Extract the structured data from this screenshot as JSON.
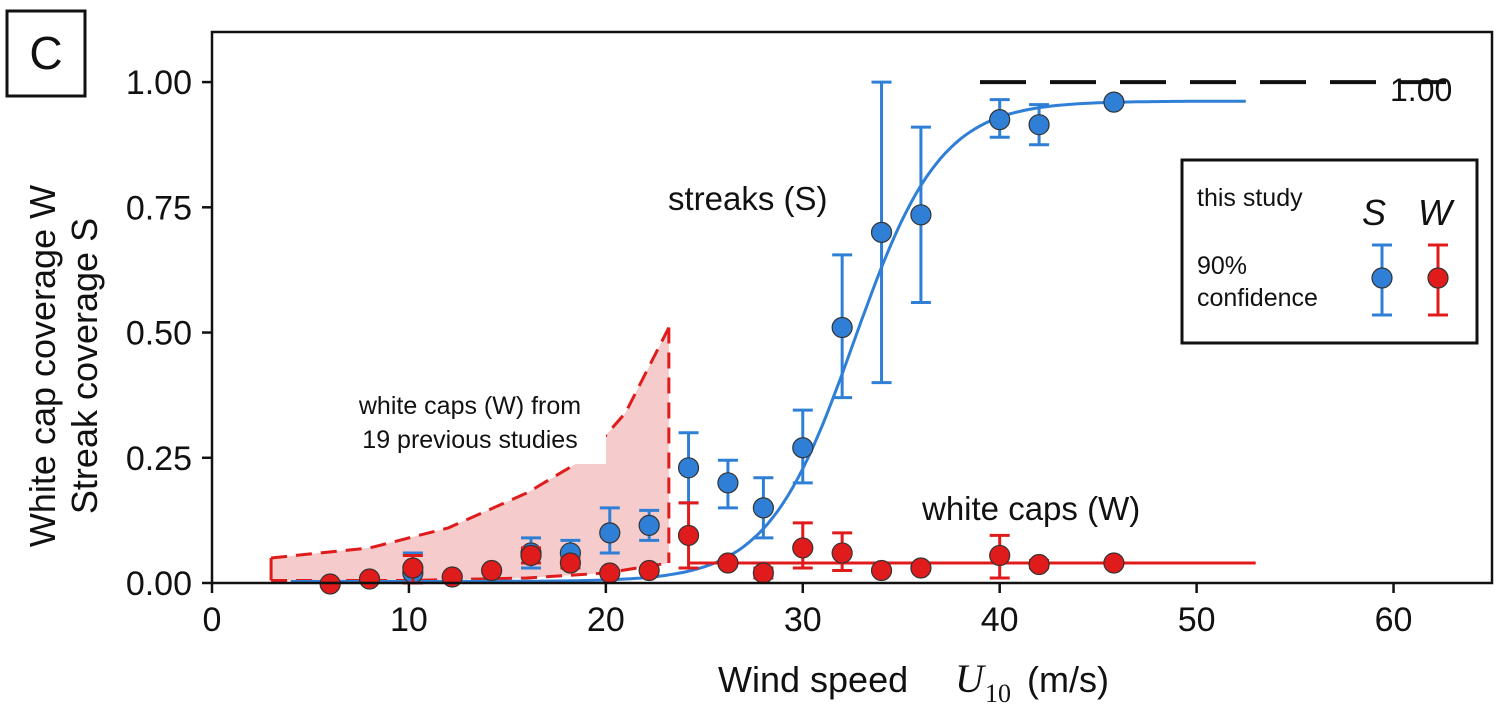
{
  "panel_label": "C",
  "chart_data": {
    "type": "scatter",
    "xlabel": {
      "prefix": "Wind speed",
      "symbol": "U",
      "subscript": "10",
      "unit": "(m/s)"
    },
    "ylabel_lines": [
      "White cap coverage W",
      "Streak coverage S"
    ],
    "xlim": [
      0,
      65
    ],
    "ylim": [
      0,
      1.1
    ],
    "x_ticks": [
      0,
      10,
      20,
      30,
      40,
      50,
      60
    ],
    "x_tick_labels": [
      "0",
      "10",
      "20",
      "30",
      "40",
      "50",
      "60"
    ],
    "y_ticks": [
      0,
      0.25,
      0.5,
      0.75,
      1.0
    ],
    "y_tick_labels": [
      "0.00",
      "0.25",
      "0.50",
      "0.75",
      "1.00"
    ],
    "grid": false,
    "series": [
      {
        "name": "S",
        "color": "#2f7fd6",
        "points": [
          {
            "x": 10.2,
            "y": 0.02,
            "lo": 0.0,
            "hi": 0.06
          },
          {
            "x": 16.2,
            "y": 0.06,
            "lo": 0.03,
            "hi": 0.09
          },
          {
            "x": 18.2,
            "y": 0.06,
            "lo": 0.04,
            "hi": 0.085
          },
          {
            "x": 20.2,
            "y": 0.1,
            "lo": 0.06,
            "hi": 0.15
          },
          {
            "x": 22.2,
            "y": 0.115,
            "lo": 0.085,
            "hi": 0.145
          },
          {
            "x": 24.2,
            "y": 0.23,
            "lo": 0.16,
            "hi": 0.3
          },
          {
            "x": 26.2,
            "y": 0.2,
            "lo": 0.15,
            "hi": 0.245
          },
          {
            "x": 28.0,
            "y": 0.15,
            "lo": 0.09,
            "hi": 0.21
          },
          {
            "x": 30.0,
            "y": 0.27,
            "lo": 0.2,
            "hi": 0.345
          },
          {
            "x": 32.0,
            "y": 0.51,
            "lo": 0.37,
            "hi": 0.655
          },
          {
            "x": 34.0,
            "y": 0.7,
            "lo": 0.4,
            "hi": 1.0
          },
          {
            "x": 36.0,
            "y": 0.735,
            "lo": 0.56,
            "hi": 0.91
          },
          {
            "x": 40.0,
            "y": 0.925,
            "lo": 0.89,
            "hi": 0.965
          },
          {
            "x": 42.0,
            "y": 0.915,
            "lo": 0.875,
            "hi": 0.955
          },
          {
            "x": 45.8,
            "y": 0.96,
            "lo": 0.96,
            "hi": 0.96
          }
        ],
        "fit_curve": {
          "x_start": 4,
          "x_end": 52.5,
          "lower": 0.003,
          "upper": 0.962,
          "x_mid": 32.6,
          "width": 2.2
        }
      },
      {
        "name": "W",
        "color": "#e01b1b",
        "points": [
          {
            "x": 6.0,
            "y": -0.002,
            "lo": -0.002,
            "hi": -0.002
          },
          {
            "x": 8.0,
            "y": 0.008,
            "lo": 0.008,
            "hi": 0.008
          },
          {
            "x": 10.2,
            "y": 0.03,
            "lo": 0.0,
            "hi": 0.055
          },
          {
            "x": 12.2,
            "y": 0.012,
            "lo": 0.012,
            "hi": 0.012
          },
          {
            "x": 14.2,
            "y": 0.025,
            "lo": 0.025,
            "hi": 0.025
          },
          {
            "x": 16.2,
            "y": 0.055,
            "lo": 0.04,
            "hi": 0.07
          },
          {
            "x": 18.2,
            "y": 0.04,
            "lo": 0.03,
            "hi": 0.05
          },
          {
            "x": 20.2,
            "y": 0.02,
            "lo": 0.02,
            "hi": 0.02
          },
          {
            "x": 22.2,
            "y": 0.025,
            "lo": 0.025,
            "hi": 0.025
          },
          {
            "x": 24.2,
            "y": 0.095,
            "lo": 0.03,
            "hi": 0.16
          },
          {
            "x": 26.2,
            "y": 0.04,
            "lo": 0.035,
            "hi": 0.045
          },
          {
            "x": 28.0,
            "y": 0.02,
            "lo": 0.01,
            "hi": 0.03
          },
          {
            "x": 30.0,
            "y": 0.07,
            "lo": 0.03,
            "hi": 0.12
          },
          {
            "x": 32.0,
            "y": 0.06,
            "lo": 0.025,
            "hi": 0.1
          },
          {
            "x": 34.0,
            "y": 0.025,
            "lo": 0.02,
            "hi": 0.03
          },
          {
            "x": 36.0,
            "y": 0.03,
            "lo": 0.025,
            "hi": 0.035
          },
          {
            "x": 40.0,
            "y": 0.055,
            "lo": 0.01,
            "hi": 0.095
          },
          {
            "x": 42.0,
            "y": 0.037,
            "lo": 0.03,
            "hi": 0.045
          },
          {
            "x": 45.8,
            "y": 0.04,
            "lo": 0.04,
            "hi": 0.04
          }
        ],
        "fit_line": {
          "x_start": 24.2,
          "x_end": 53,
          "y": 0.04
        }
      }
    ],
    "previous_studies_band": {
      "color": "#e01b1b",
      "upper": [
        [
          3,
          0.05
        ],
        [
          8,
          0.07
        ],
        [
          12,
          0.11
        ],
        [
          16,
          0.18
        ],
        [
          19,
          0.25
        ],
        [
          21,
          0.34
        ],
        [
          23.2,
          0.51
        ]
      ],
      "lower": [
        [
          3,
          0.005
        ],
        [
          10,
          0.005
        ],
        [
          16,
          0.01
        ],
        [
          20,
          0.02
        ],
        [
          23.2,
          0.04
        ]
      ],
      "label_lines": [
        "white caps (W) from",
        "19 previous studies"
      ]
    },
    "reference_line": {
      "y": 1.0,
      "x_start": 39,
      "x_end": 63,
      "label": "1.00"
    },
    "annotations": {
      "streaks": "streaks (S)",
      "white_caps": "white caps (W)"
    },
    "legend": {
      "position": "top-right",
      "title": "this study",
      "col_s": "S",
      "col_w": "W",
      "conf_line1": "90%",
      "conf_line2": "confidence"
    }
  }
}
